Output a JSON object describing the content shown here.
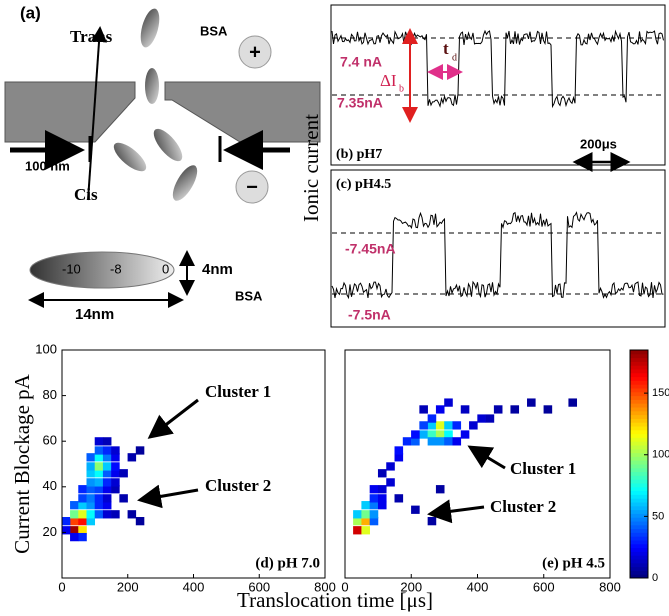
{
  "panel_a": {
    "label": "(a)",
    "trans": "Trans",
    "cis": "Cis",
    "bsa_top": "BSA",
    "plus": "+",
    "minus": "−",
    "pore_width": "100 nm",
    "charge_scale": [
      "-10",
      "-8",
      "0"
    ],
    "height": "4nm",
    "length": "14nm",
    "bsa_bottom": "BSA"
  },
  "ionic_axis": "Ionic current",
  "panel_b": {
    "label": "(b) pH7",
    "level_high": "7.4 nA",
    "level_low": "7.35nA",
    "delta": "ΔI",
    "delta_sub": "b",
    "td": "t",
    "td_sub": "d",
    "scale": "200μs"
  },
  "panel_c": {
    "label": "(c) pH4.5",
    "level_high": "-7.45nA",
    "level_low": "-7.5nA"
  },
  "chart_data": [
    {
      "type": "heatmap",
      "xlabel": "Translocation time [μs]",
      "ylabel": "Current Blockage pA",
      "panel_label": "(d) pH 7.0",
      "annotations": [
        "Cluster 1",
        "Cluster 2"
      ],
      "xlim": [
        0,
        800
      ],
      "xticks": [
        0,
        200,
        400,
        600,
        800
      ],
      "ylim": [
        0,
        100
      ],
      "yticks": [
        20,
        40,
        60,
        80,
        100
      ],
      "x_bin": 25,
      "y_bin": 3.5,
      "cells": [
        [
          37,
          21,
          180
        ],
        [
          62,
          21,
          120
        ],
        [
          37,
          25,
          150
        ],
        [
          62,
          25,
          160
        ],
        [
          87,
          25,
          60
        ],
        [
          12,
          21,
          20
        ],
        [
          12,
          25,
          30
        ],
        [
          37,
          28,
          90
        ],
        [
          62,
          28,
          110
        ],
        [
          87,
          28,
          70
        ],
        [
          112,
          28,
          40
        ],
        [
          137,
          28,
          15
        ],
        [
          37,
          32,
          40
        ],
        [
          62,
          32,
          60
        ],
        [
          87,
          32,
          50
        ],
        [
          112,
          32,
          30
        ],
        [
          137,
          32,
          20
        ],
        [
          162,
          28,
          10
        ],
        [
          62,
          35,
          35
        ],
        [
          87,
          35,
          45
        ],
        [
          112,
          35,
          30
        ],
        [
          137,
          35,
          15
        ],
        [
          62,
          39,
          30
        ],
        [
          87,
          39,
          40
        ],
        [
          112,
          39,
          35
        ],
        [
          137,
          39,
          20
        ],
        [
          162,
          39,
          10
        ],
        [
          87,
          42,
          50
        ],
        [
          112,
          42,
          55
        ],
        [
          137,
          42,
          30
        ],
        [
          162,
          42,
          15
        ],
        [
          87,
          46,
          60
        ],
        [
          112,
          46,
          70
        ],
        [
          137,
          46,
          40
        ],
        [
          162,
          46,
          20
        ],
        [
          187,
          46,
          10
        ],
        [
          87,
          49,
          55
        ],
        [
          112,
          49,
          95
        ],
        [
          137,
          49,
          60
        ],
        [
          162,
          49,
          25
        ],
        [
          87,
          53,
          40
        ],
        [
          112,
          53,
          70
        ],
        [
          137,
          53,
          45
        ],
        [
          162,
          53,
          20
        ],
        [
          212,
          53,
          8
        ],
        [
          112,
          56,
          40
        ],
        [
          137,
          56,
          30
        ],
        [
          162,
          56,
          15
        ],
        [
          112,
          60,
          15
        ],
        [
          137,
          60,
          10
        ],
        [
          237,
          56,
          5
        ],
        [
          187,
          35,
          8
        ],
        [
          212,
          28,
          6
        ],
        [
          237,
          25,
          5
        ],
        [
          62,
          18,
          30
        ],
        [
          37,
          18,
          20
        ]
      ]
    },
    {
      "type": "heatmap",
      "panel_label": "(e) pH 4.5",
      "annotations": [
        "Cluster 1",
        "Cluster 2"
      ],
      "xlim": [
        0,
        800
      ],
      "xticks": [
        0,
        200,
        400,
        600,
        800
      ],
      "ylim": [
        0,
        100
      ],
      "x_bin": 25,
      "y_bin": 3.5,
      "colorbar": {
        "lim": [
          0,
          185
        ],
        "ticks": [
          0,
          50,
          100,
          150
        ]
      },
      "cells": [
        [
          37,
          21,
          170
        ],
        [
          62,
          21,
          110
        ],
        [
          37,
          25,
          100
        ],
        [
          62,
          25,
          130
        ],
        [
          87,
          25,
          40
        ],
        [
          37,
          28,
          60
        ],
        [
          62,
          28,
          90
        ],
        [
          87,
          28,
          50
        ],
        [
          62,
          32,
          60
        ],
        [
          87,
          32,
          45
        ],
        [
          112,
          32,
          20
        ],
        [
          87,
          35,
          30
        ],
        [
          112,
          35,
          20
        ],
        [
          87,
          39,
          20
        ],
        [
          112,
          39,
          15
        ],
        [
          137,
          42,
          15
        ],
        [
          112,
          46,
          10
        ],
        [
          137,
          49,
          15
        ],
        [
          162,
          53,
          20
        ],
        [
          162,
          56,
          25
        ],
        [
          187,
          60,
          30
        ],
        [
          212,
          60,
          40
        ],
        [
          237,
          63,
          55
        ],
        [
          262,
          63,
          80
        ],
        [
          287,
          63,
          100
        ],
        [
          312,
          63,
          70
        ],
        [
          262,
          67,
          60
        ],
        [
          287,
          67,
          110
        ],
        [
          312,
          67,
          60
        ],
        [
          337,
          67,
          30
        ],
        [
          237,
          67,
          35
        ],
        [
          212,
          63,
          25
        ],
        [
          262,
          60,
          50
        ],
        [
          287,
          60,
          50
        ],
        [
          312,
          60,
          40
        ],
        [
          337,
          60,
          20
        ],
        [
          362,
          63,
          20
        ],
        [
          387,
          67,
          15
        ],
        [
          412,
          70,
          15
        ],
        [
          437,
          70,
          10
        ],
        [
          462,
          74,
          8
        ],
        [
          512,
          74,
          6
        ],
        [
          562,
          77,
          6
        ],
        [
          612,
          74,
          5
        ],
        [
          687,
          77,
          5
        ],
        [
          287,
          74,
          20
        ],
        [
          312,
          77,
          15
        ],
        [
          262,
          70,
          30
        ],
        [
          237,
          74,
          10
        ],
        [
          362,
          74,
          12
        ],
        [
          212,
          30,
          8
        ],
        [
          262,
          25,
          6
        ],
        [
          287,
          39,
          6
        ],
        [
          162,
          35,
          8
        ]
      ]
    }
  ]
}
